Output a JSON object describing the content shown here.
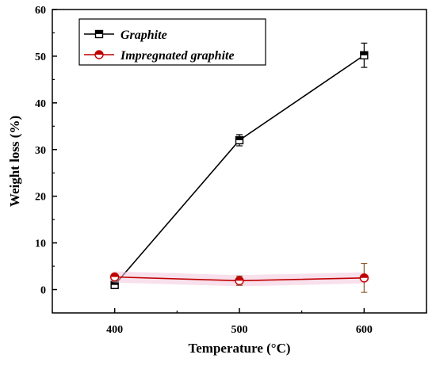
{
  "chart_data": {
    "type": "line",
    "xlabel": "Temperature (°C)",
    "ylabel": "Weight loss (%)",
    "x": [
      400,
      500,
      600
    ],
    "xlim": [
      350,
      650
    ],
    "ylim": [
      -5,
      60
    ],
    "x_ticks": [
      400,
      500,
      600
    ],
    "y_ticks": [
      0,
      10,
      20,
      30,
      40,
      50,
      60
    ],
    "grid": false,
    "legend": "top-left",
    "series": [
      {
        "name": "Graphite",
        "values": [
          1.0,
          32.0,
          50.2
        ],
        "errors": [
          0.8,
          1.2,
          2.6
        ],
        "color": "#000000",
        "marker": "half-filled-square"
      },
      {
        "name": "Impregnated graphite",
        "values": [
          2.7,
          1.9,
          2.5
        ],
        "errors": [
          0.6,
          1.0,
          3.1
        ],
        "color": "#c00000",
        "errorbar_color": "#8b5a2b",
        "marker": "half-filled-circle"
      }
    ]
  }
}
